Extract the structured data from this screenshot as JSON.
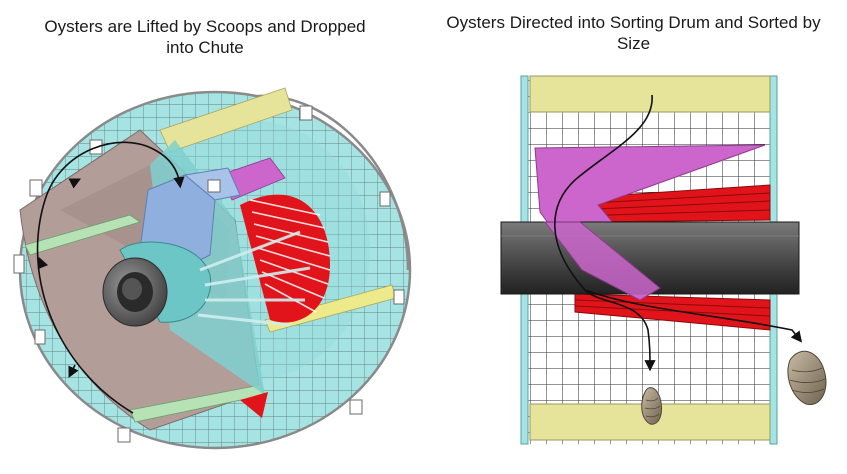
{
  "panels": {
    "left": {
      "title_line1": "Oysters are Lifted by Scoops and Dropped",
      "title_line2": "into Chute"
    },
    "right": {
      "title_line1": "Oysters Directed into Sorting Drum and Sorted by",
      "title_line2": "Size"
    }
  },
  "colors": {
    "drum_mesh": "#9fe3e3",
    "grid_line": "#2f2f2f",
    "end_plate": "#b09a96",
    "chute": "#8fb0df",
    "scoop": "#e8e69a",
    "sorter_bars": "#e0141a",
    "deflector": "#cc66cc",
    "shaft": "#4a4a4a",
    "oyster": "#a39480"
  },
  "icons": [
    "rotation-arrow-icon",
    "flow-arrow-icon",
    "oyster-icon"
  ]
}
